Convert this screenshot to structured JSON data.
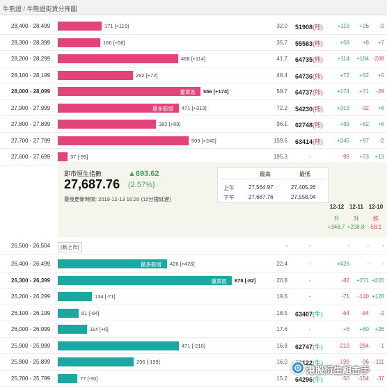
{
  "header": {
    "title": "牛熊證 / 牛熊證街貨分佈圖"
  },
  "bear_rows": [
    {
      "range": "28,400 - 28,499",
      "label": "171 [+119]",
      "val": "32.0",
      "code": "51908",
      "code_type": "熊",
      "c1": "+119",
      "c2": "+26",
      "c3": "-2"
    },
    {
      "range": "28,300 - 28,399",
      "label": "166 [+58]",
      "val": "35.7",
      "code": "55583",
      "code_type": "熊",
      "c1": "+58",
      "c2": "+8",
      "c3": "+7"
    },
    {
      "range": "28,200 - 28,299",
      "label": "468 [+114]",
      "val": "41.7",
      "code": "64735",
      "code_type": "熊",
      "c1": "+114",
      "c2": "+184",
      "c3": "-208"
    },
    {
      "range": "28,100 - 28,199",
      "label": "292 [+72]",
      "val": "48.4",
      "code": "64736",
      "code_type": "熊",
      "c1": "+72",
      "c2": "+52",
      "c3": "+5"
    },
    {
      "range": "28,000 - 28,099",
      "tag": "重貨區",
      "label": "556 [+174]",
      "val": "59.7",
      "code": "64737",
      "code_type": "熊",
      "c1": "+174",
      "c2": "+71",
      "c3": "-29"
    },
    {
      "range": "27,900 - 27,999",
      "tag": "最多新增",
      "label": "471 [+313]",
      "val": "72.2",
      "code": "54230",
      "code_type": "熊",
      "c1": "+313",
      "c2": "-32",
      "c3": "+6"
    },
    {
      "range": "27,800 - 27,899",
      "label": "382 [+89]",
      "val": "96.1",
      "code": "62748",
      "code_type": "熊",
      "c1": "+89",
      "c2": "+62",
      "c3": "+6"
    },
    {
      "range": "27,700 - 27,799",
      "label": "509 [+245]",
      "val": "159.6",
      "code": "63414",
      "code_type": "熊",
      "c1": "+245",
      "c2": "+97",
      "c3": "-2"
    },
    {
      "range": "27,600 - 27,699",
      "label": "37 [-99]",
      "val": "195.3",
      "code": "-",
      "code_type": "",
      "c1": "-99",
      "c2": "+73",
      "c3": "+13"
    }
  ],
  "hsi": {
    "label": "即市恒生指數",
    "value": "27,687.76",
    "change": "▲693.62",
    "pct": "(2.57%)",
    "update": "最後更新時間: 2019-12-13 16:20 (15分鐘延遲)",
    "col_high": "最高",
    "col_low": "最低",
    "am_label": "上午",
    "pm_label": "下午",
    "am_high": "27,564.97",
    "am_low": "27,405.26",
    "pm_high": "27,687.76",
    "pm_low": "27,558.04",
    "days": [
      {
        "date": "12-12",
        "dir": "升",
        "val": "+348.7",
        "tone": "pos"
      },
      {
        "date": "12-11",
        "dir": "升",
        "val": "+208.8",
        "tone": "pos"
      },
      {
        "date": "12-10",
        "dir": "跌",
        "val": "-58.1",
        "tone": "neg"
      }
    ]
  },
  "new_listing_row": {
    "range": "26,500 - 26,504",
    "tag": "[新上市]",
    "val": "-",
    "code": "-",
    "c1": "-",
    "c2": "-",
    "c3": "-"
  },
  "bull_rows": [
    {
      "range": "26,400 - 26,499",
      "tag": "最多新增",
      "label": "426 [+426]",
      "val": "22.4",
      "code": "-",
      "code_type": "",
      "c1": "+426",
      "c2": "-",
      "c3": "-"
    },
    {
      "range": "26,300 - 26,399",
      "tag": "重貨區",
      "label": "678 [-82]",
      "val": "20.8",
      "code": "-",
      "code_type": "",
      "c1": "-82",
      "c2": "+271",
      "c3": "+220"
    },
    {
      "range": "26,200 - 26,299",
      "label": "134 [-71]",
      "val": "19.6",
      "code": "-",
      "code_type": "",
      "c1": "-71",
      "c2": "-140",
      "c3": "+128"
    },
    {
      "range": "26,100 - 26,199",
      "label": "81 [-64]",
      "val": "18.5",
      "code": "63407",
      "code_type": "牛",
      "c1": "-64",
      "c2": "-84",
      "c3": "-2"
    },
    {
      "range": "26,000 - 26,099",
      "label": "114 [+6]",
      "val": "17.6",
      "code": "-",
      "code_type": "",
      "c1": "+6",
      "c2": "+60",
      "c3": "+26"
    },
    {
      "range": "25,900 - 25,999",
      "label": "471 [-210]",
      "val": "16.8",
      "code": "62747",
      "code_type": "牛",
      "c1": "-210",
      "c2": "-284",
      "c3": "-1"
    },
    {
      "range": "25,800 - 25,899",
      "label": "296 [-199]",
      "val": "16.0",
      "code": "63122",
      "code_type": "牛",
      "c1": "-199",
      "c2": "-96",
      "c3": "-111"
    },
    {
      "range": "25,700 - 25,799",
      "label": "77 [-50]",
      "val": "15.2",
      "code": "64296",
      "code_type": "牛",
      "c1": "-50",
      "c2": "-154",
      "c3": "-37"
    }
  ],
  "watermark": "港股衍生組击手",
  "colors": {
    "bear": "#e2437a",
    "bull": "#1aa8a0",
    "up": "#3aa757",
    "down": "#d9475f"
  }
}
